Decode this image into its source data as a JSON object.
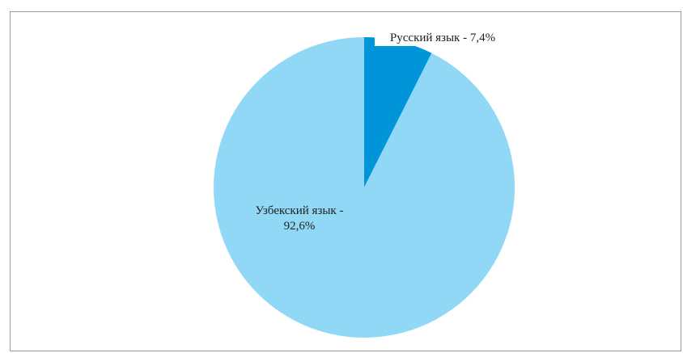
{
  "chart_data": {
    "type": "pie",
    "title": "",
    "slices": [
      {
        "label": "Русский язык - 7,4%",
        "label_lines": [
          "Русский язык - 7,4%"
        ],
        "value": 7.4,
        "color": "#0095d8"
      },
      {
        "label": "Узбекский язык - 92,6%",
        "label_lines": [
          "Узбекский язык -",
          "92,6%"
        ],
        "value": 92.6,
        "color": "#90d8f5"
      }
    ],
    "start_angle": "12 o'clock",
    "direction": "clockwise",
    "legend": "none"
  }
}
